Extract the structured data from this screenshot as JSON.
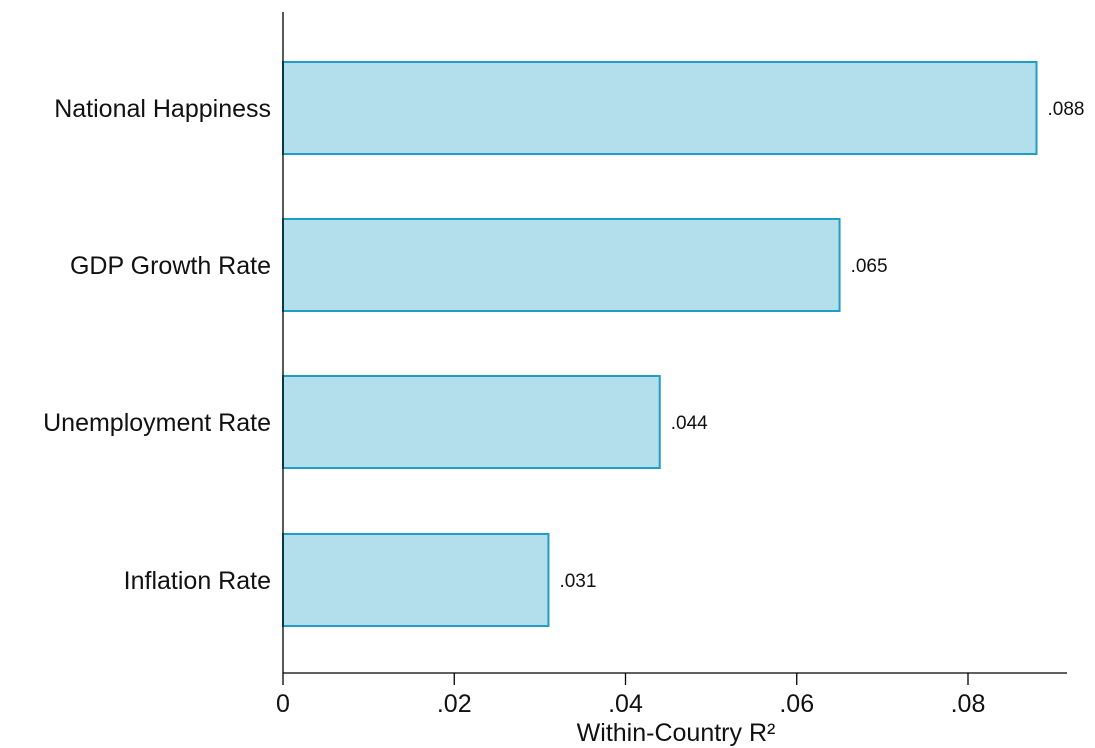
{
  "chart_data": {
    "type": "bar",
    "orientation": "horizontal",
    "categories": [
      "National Happiness",
      "GDP Growth Rate",
      "Unemployment Rate",
      "Inflation Rate"
    ],
    "values": [
      0.088,
      0.065,
      0.044,
      0.031
    ],
    "data_labels": [
      ".088",
      ".065",
      ".044",
      ".031"
    ],
    "title": "",
    "xlabel": "Within-Country R²",
    "ylabel": "",
    "xlim": [
      0,
      0.091
    ],
    "x_ticks": [
      0,
      0.02,
      0.04,
      0.06,
      0.08
    ],
    "x_tick_labels": [
      "0",
      ".02",
      ".04",
      ".06",
      ".08"
    ],
    "grid": false,
    "legend": "none",
    "colors": {
      "bar_fill": "#b3deeb",
      "bar_stroke": "#1f9ec4",
      "axis": "#000000",
      "text": "#111111"
    }
  }
}
